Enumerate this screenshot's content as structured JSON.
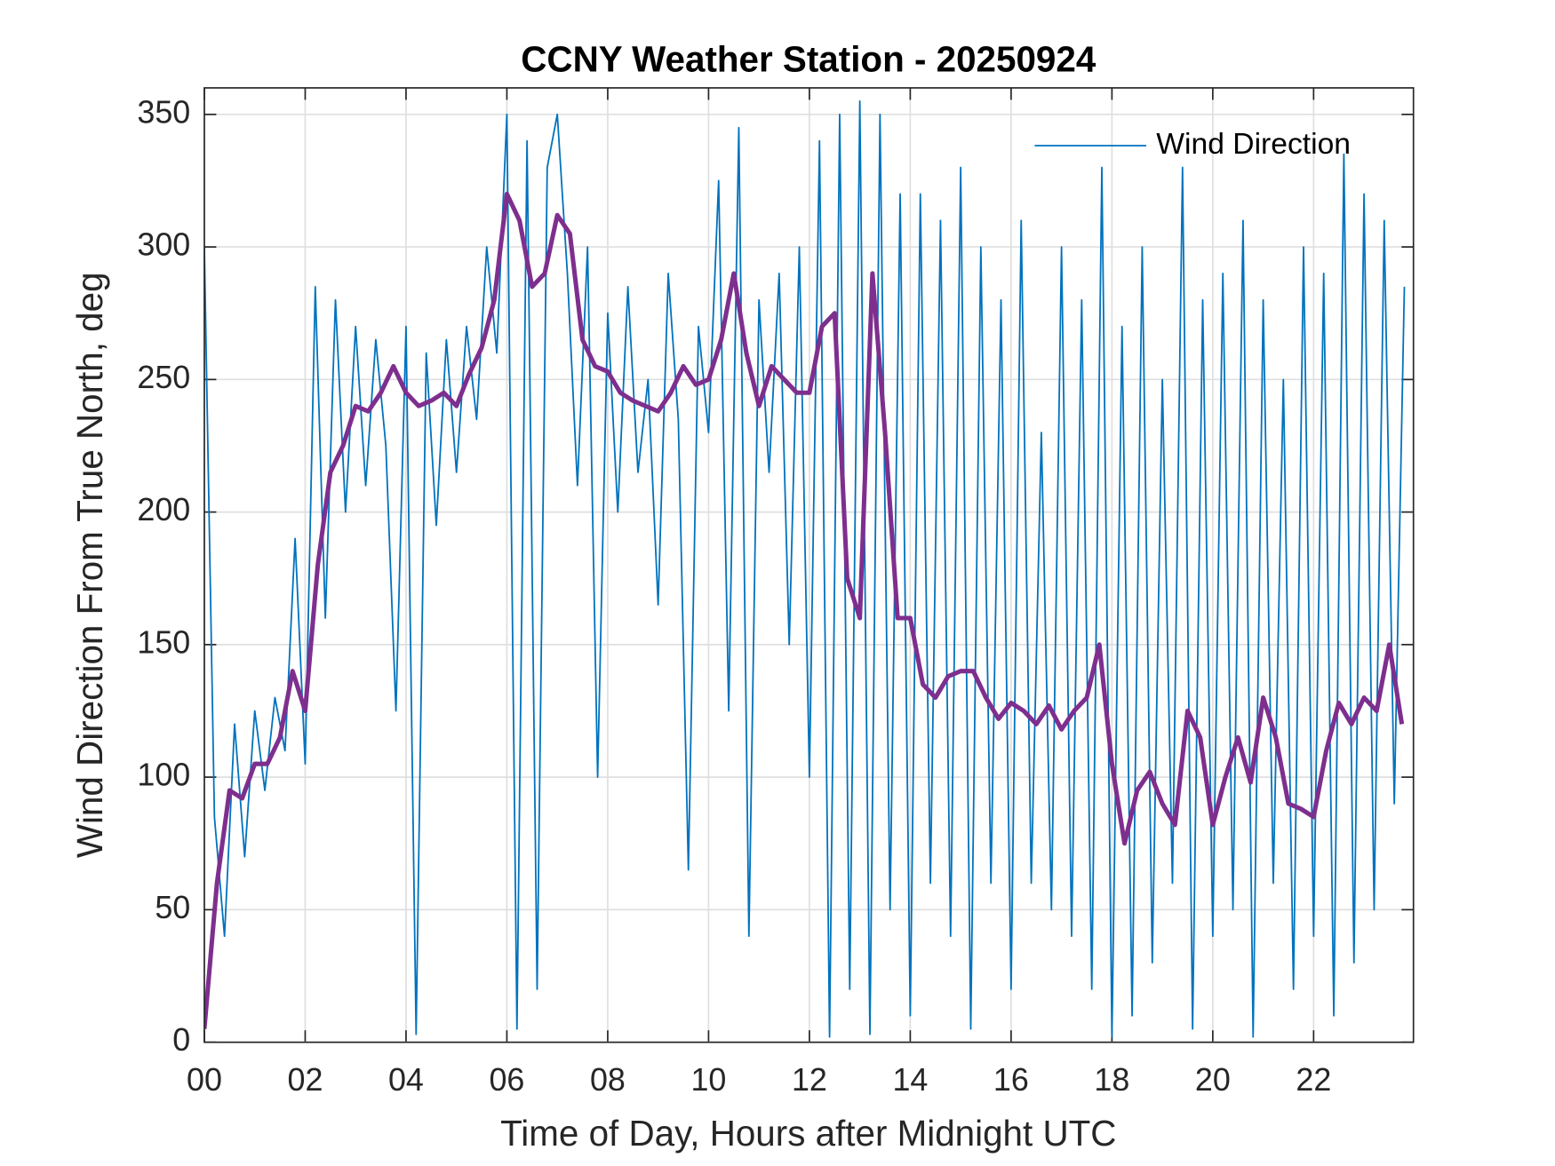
{
  "chart_data": {
    "type": "line",
    "title": "CCNY Weather Station - 20250924",
    "xlabel": "Time of Day, Hours after Midnight UTC",
    "ylabel": "Wind Direction From True North, deg",
    "xlim": [
      0,
      23.98
    ],
    "ylim": [
      0,
      360
    ],
    "xticks": [
      {
        "value": 0,
        "label": "00"
      },
      {
        "value": 2,
        "label": "02"
      },
      {
        "value": 4,
        "label": "04"
      },
      {
        "value": 6,
        "label": "06"
      },
      {
        "value": 8,
        "label": "08"
      },
      10,
      12,
      14,
      16,
      18,
      20,
      22
    ],
    "yticks": [
      0,
      50,
      100,
      150,
      200,
      250,
      300,
      350
    ],
    "grid": true,
    "legend": "northeast",
    "series": [
      {
        "name": "Wind Direction",
        "color": "#0072bd",
        "x": [
          0,
          0.2,
          0.4,
          0.6,
          0.8,
          1,
          1.2,
          1.4,
          1.6,
          1.8,
          2,
          2.2,
          2.4,
          2.6,
          2.8,
          3,
          3.2,
          3.4,
          3.6,
          3.8,
          4,
          4.2,
          4.4,
          4.6,
          4.8,
          5,
          5.2,
          5.4,
          5.6,
          5.8,
          6,
          6.2,
          6.4,
          6.6,
          6.8,
          7,
          7.2,
          7.4,
          7.6,
          7.8,
          8,
          8.2,
          8.4,
          8.6,
          8.8,
          9,
          9.2,
          9.4,
          9.6,
          9.8,
          10,
          10.2,
          10.4,
          10.6,
          10.8,
          11,
          11.2,
          11.4,
          11.6,
          11.8,
          12,
          12.2,
          12.4,
          12.6,
          12.8,
          13,
          13.2,
          13.4,
          13.6,
          13.8,
          14,
          14.2,
          14.4,
          14.6,
          14.8,
          15,
          15.2,
          15.4,
          15.6,
          15.8,
          16,
          16.2,
          16.4,
          16.6,
          16.8,
          17,
          17.2,
          17.4,
          17.6,
          17.8,
          18,
          18.2,
          18.4,
          18.6,
          18.8,
          19,
          19.2,
          19.4,
          19.6,
          19.8,
          20,
          20.2,
          20.4,
          20.6,
          20.8,
          21,
          21.2,
          21.4,
          21.6,
          21.8,
          22,
          22.2,
          22.4,
          22.6,
          22.8,
          23,
          23.2,
          23.4,
          23.6,
          23.8
        ],
        "values": [
          300,
          85,
          40,
          120,
          70,
          125,
          95,
          130,
          110,
          190,
          105,
          285,
          160,
          280,
          200,
          270,
          210,
          265,
          225,
          125,
          270,
          3,
          260,
          195,
          265,
          215,
          270,
          235,
          300,
          260,
          350,
          5,
          340,
          20,
          330,
          350,
          290,
          210,
          300,
          100,
          275,
          200,
          285,
          215,
          250,
          165,
          290,
          235,
          65,
          270,
          230,
          325,
          125,
          345,
          40,
          280,
          215,
          290,
          150,
          300,
          100,
          340,
          2,
          350,
          20,
          355,
          3,
          350,
          50,
          320,
          10,
          320,
          60,
          310,
          40,
          330,
          5,
          300,
          60,
          280,
          20,
          310,
          60,
          230,
          50,
          300,
          40,
          280,
          20,
          330,
          2,
          270,
          10,
          300,
          30,
          250,
          60,
          330,
          5,
          280,
          40,
          290,
          50,
          310,
          2,
          280,
          60,
          250,
          20,
          300,
          40,
          290,
          10,
          335,
          30,
          320,
          50,
          310,
          90,
          285
        ]
      },
      {
        "color": "#7e2f8e",
        "x": [
          0,
          0.25,
          0.5,
          0.75,
          1,
          1.25,
          1.5,
          1.75,
          2,
          2.25,
          2.5,
          2.75,
          3,
          3.25,
          3.5,
          3.75,
          4,
          4.25,
          4.5,
          4.75,
          5,
          5.25,
          5.5,
          5.75,
          6,
          6.25,
          6.5,
          6.75,
          7,
          7.25,
          7.5,
          7.75,
          8,
          8.25,
          8.5,
          8.75,
          9,
          9.25,
          9.5,
          9.75,
          10,
          10.25,
          10.5,
          10.75,
          11,
          11.25,
          11.5,
          11.75,
          12,
          12.25,
          12.5,
          12.75,
          13,
          13.25,
          13.5,
          13.75,
          14,
          14.25,
          14.5,
          14.75,
          15,
          15.25,
          15.5,
          15.75,
          16,
          16.25,
          16.5,
          16.75,
          17,
          17.25,
          17.5,
          17.75,
          18,
          18.25,
          18.5,
          18.75,
          19,
          19.25,
          19.5,
          19.75,
          20,
          20.25,
          20.5,
          20.75,
          21,
          21.25,
          21.5,
          21.75,
          22,
          22.25,
          22.5,
          22.75,
          23,
          23.25,
          23.5,
          23.75
        ],
        "values": [
          5,
          60,
          95,
          92,
          105,
          105,
          115,
          140,
          125,
          180,
          215,
          225,
          240,
          238,
          245,
          255,
          245,
          240,
          242,
          245,
          240,
          252,
          262,
          280,
          320,
          310,
          285,
          290,
          312,
          305,
          265,
          255,
          253,
          245,
          242,
          240,
          238,
          245,
          255,
          248,
          250,
          265,
          290,
          260,
          240,
          255,
          250,
          245,
          245,
          270,
          275,
          175,
          160,
          290,
          230,
          160,
          160,
          135,
          130,
          138,
          140,
          140,
          130,
          122,
          128,
          125,
          120,
          127,
          118,
          125,
          130,
          150,
          105,
          75,
          95,
          102,
          90,
          82,
          125,
          115,
          82,
          100,
          115,
          98,
          130,
          115,
          90,
          88,
          85,
          110,
          128,
          120,
          130,
          125,
          150,
          120
        ]
      }
    ]
  }
}
